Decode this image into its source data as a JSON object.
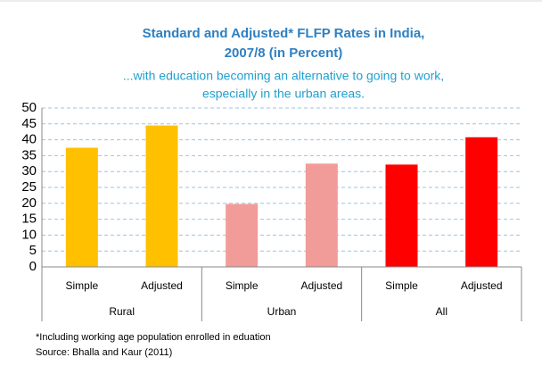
{
  "chart_data": {
    "type": "bar",
    "title": "Standard and Adjusted* FLFP Rates in India,",
    "title_line2": "2007/8 (in Percent)",
    "subtitle": "...with education becoming an alternative to going to work,",
    "subtitle_line2": "especially in the urban areas.",
    "categories": [
      "Simple",
      "Adjusted",
      "Simple",
      "Adjusted",
      "Simple",
      "Adjusted"
    ],
    "groups": [
      "Rural",
      "Urban",
      "All"
    ],
    "values": [
      37.5,
      44.5,
      19.8,
      32.5,
      32.2,
      40.8
    ],
    "colors": [
      "#ffc000",
      "#ffc000",
      "#f19c98",
      "#f19c98",
      "#ff0000",
      "#ff0000"
    ],
    "ylim": [
      0,
      50
    ],
    "yticks": [
      0,
      5,
      10,
      15,
      20,
      25,
      30,
      35,
      40,
      45,
      50
    ],
    "grid": true,
    "note": "*Including working age population enrolled in eduation",
    "source": "Source: Bhalla and Kaur (2011)"
  }
}
